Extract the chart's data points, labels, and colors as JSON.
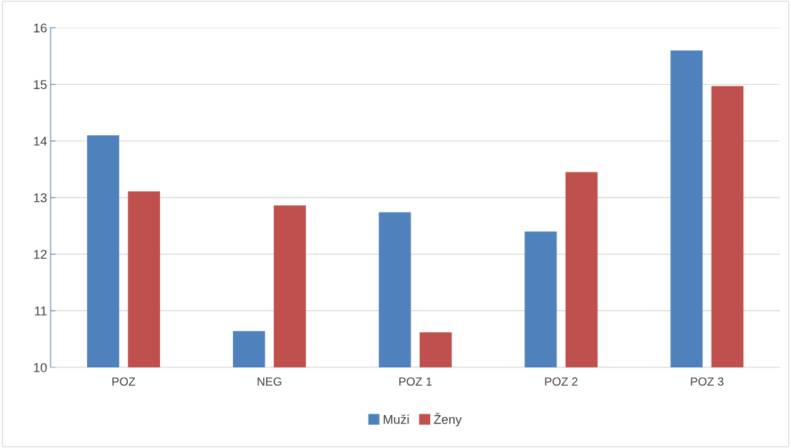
{
  "chart_data": {
    "type": "bar",
    "categories": [
      "POZ",
      "NEG",
      "POZ 1",
      "POZ 2",
      "POZ 3"
    ],
    "series": [
      {
        "name": "Muži",
        "color": "#4f81bd",
        "values": [
          14.1,
          10.64,
          12.74,
          12.4,
          15.6
        ]
      },
      {
        "name": "Ženy",
        "color": "#c0504d",
        "values": [
          13.11,
          12.86,
          10.62,
          13.45,
          14.97
        ]
      }
    ],
    "ylim": [
      10,
      16
    ],
    "yticks": [
      10,
      11,
      12,
      13,
      14,
      15,
      16
    ],
    "grid": "y",
    "legend": "bottom"
  }
}
